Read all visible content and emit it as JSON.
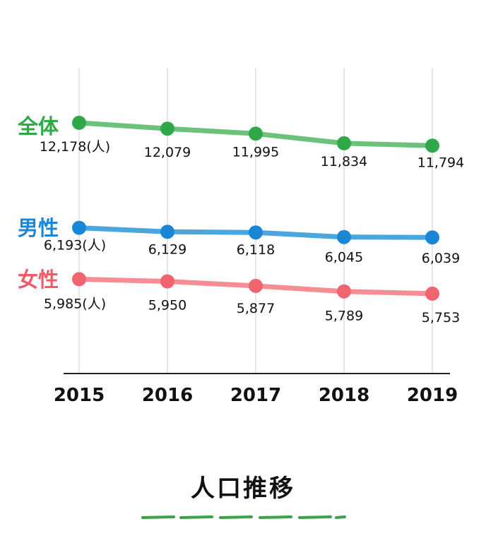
{
  "chart_data": {
    "type": "line",
    "title": "人口推移",
    "x": [
      "2015",
      "2016",
      "2017",
      "2018",
      "2019"
    ],
    "unit_suffix": "(人)",
    "grid": "vertical",
    "series": [
      {
        "key": "total",
        "name": "全体",
        "color": "#6cc27a",
        "marker_color": "#2fa84a",
        "label_color": "#2fa84a",
        "values": [
          12178,
          12079,
          11995,
          11834,
          11794
        ],
        "value_labels": [
          "12,178",
          "12,079",
          "11,995",
          "11,834",
          "11,794"
        ]
      },
      {
        "key": "male",
        "name": "男性",
        "color": "#4aa6df",
        "marker_color": "#1a86d6",
        "label_color": "#1a86d6",
        "values": [
          6193,
          6129,
          6118,
          6045,
          6039
        ],
        "value_labels": [
          "6,193",
          "6,129",
          "6,118",
          "6,045",
          "6,039"
        ]
      },
      {
        "key": "female",
        "name": "女性",
        "color": "#f58e94",
        "marker_color": "#f0646e",
        "label_color": "#ef5b67",
        "values": [
          5985,
          5950,
          5877,
          5789,
          5753
        ],
        "value_labels": [
          "5,985",
          "5,950",
          "5,877",
          "5,789",
          "5,753"
        ]
      }
    ]
  }
}
